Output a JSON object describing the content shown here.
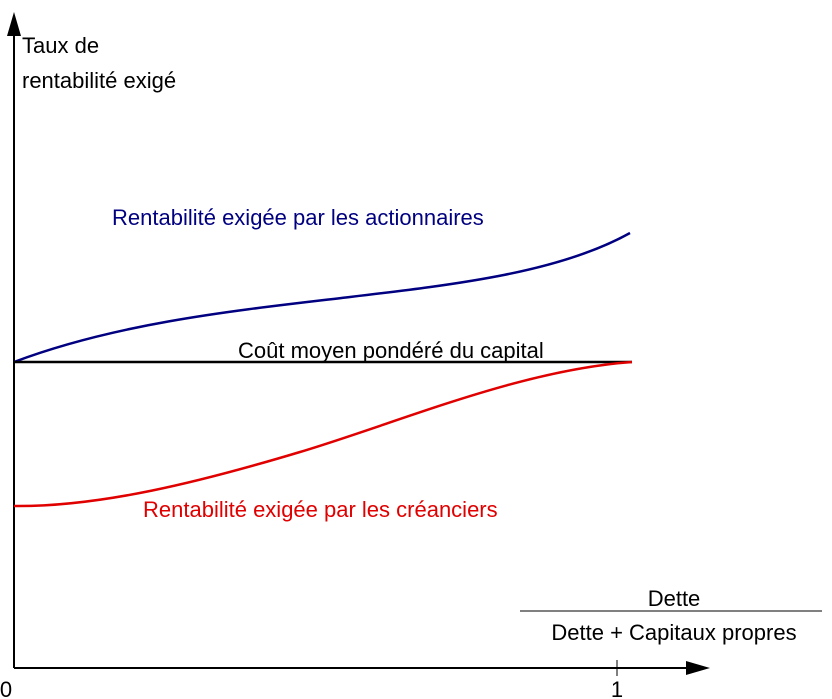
{
  "y_axis_label": {
    "line1": "Taux de",
    "line2": "rentabilité exigé"
  },
  "x_axis_label": {
    "numerator": "Dette",
    "denominator": "Dette + Capitaux propres"
  },
  "x_ticks": [
    "0",
    "1"
  ],
  "curves": [
    {
      "label": "Rentabilité exigée par les actionnaires"
    },
    {
      "label": "Coût moyen pondéré du capital"
    },
    {
      "label": "Rentabilité exigée par les créanciers"
    }
  ]
}
